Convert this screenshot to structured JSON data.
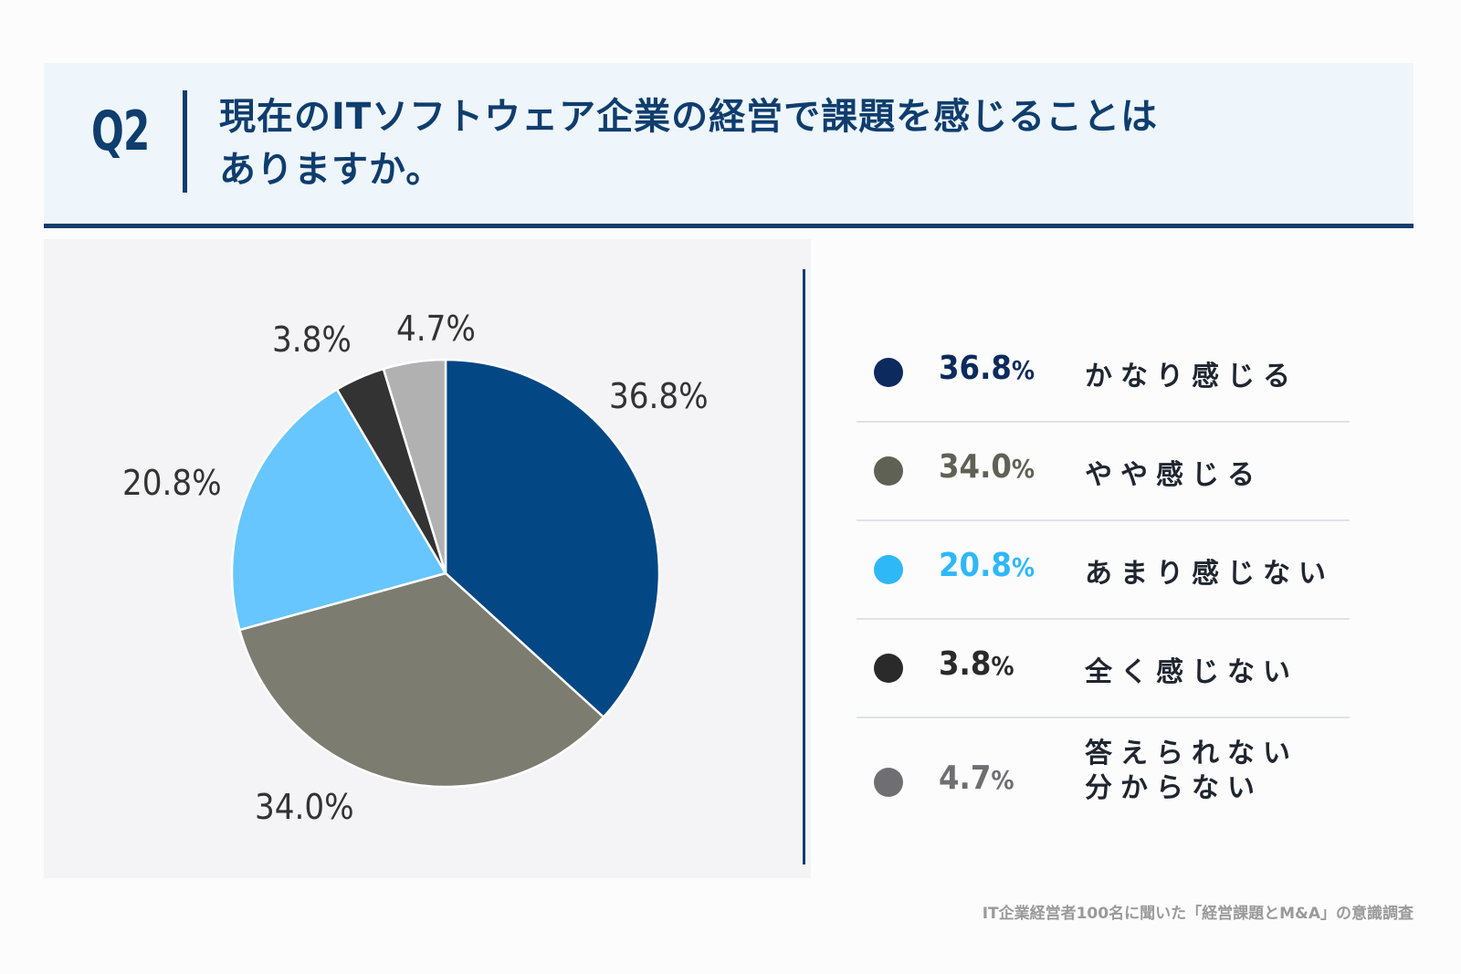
{
  "header": {
    "question_no": "Q2",
    "question_line1": "現在のITソフトウェア企業の経営で課題を感じることは",
    "question_line2": "ありますか。"
  },
  "chart_data": {
    "type": "pie",
    "categories": [
      "かなり感じる",
      "やや感じる",
      "あまり感じない",
      "全く感じない",
      "答えられない 分からない"
    ],
    "values": [
      36.8,
      34.0,
      20.8,
      3.8,
      4.7
    ],
    "value_labels": [
      "36.8%",
      "34.0%",
      "20.8%",
      "3.8%",
      "4.7%"
    ],
    "colors": [
      "#034784",
      "#7c7c70",
      "#66c6fd",
      "#333333",
      "#b1b1b1"
    ],
    "legend_placement": "right"
  },
  "legend": [
    {
      "value": "36.8",
      "unit": "%",
      "label": "かなり感じる",
      "dot_color": "#0d2a5e",
      "text_color": "#0d2a5e"
    },
    {
      "value": "34.0",
      "unit": "%",
      "label": "やや感じる",
      "dot_color": "#5f6155",
      "text_color": "#5f6155"
    },
    {
      "value": "20.8",
      "unit": "%",
      "label": "あまり感じない",
      "dot_color": "#2eb8f8",
      "text_color": "#2eb8f8"
    },
    {
      "value": "3.8",
      "unit": "%",
      "label": "全く感じない",
      "dot_color": "#2a2a2a",
      "text_color": "#2a2a2a"
    },
    {
      "value": "4.7",
      "unit": "%",
      "label_line1": "答えられない",
      "label_line2": "分からない",
      "dot_color": "#6f6f73",
      "text_color": "#6f6f73"
    }
  ],
  "source": "IT企業経営者100名に聞いた「経営課題とM&A」の意識調査"
}
